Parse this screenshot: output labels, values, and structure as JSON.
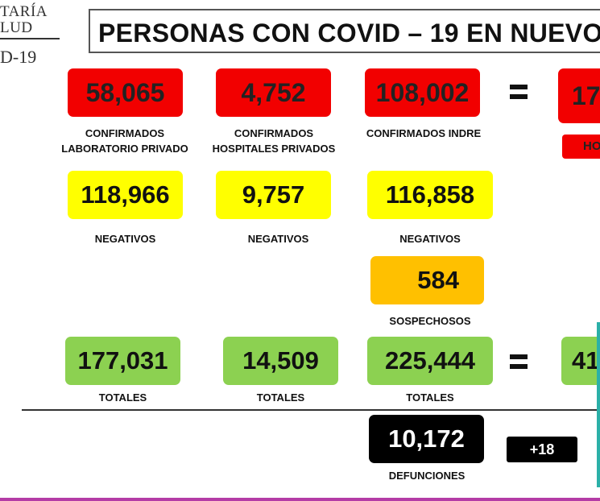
{
  "logo": {
    "line1": "TARÍA",
    "line2": "LUD",
    "line3": "D-19"
  },
  "title": "PERSONAS CON COVID – 19 EN NUEVO",
  "equals": "=",
  "rows": {
    "confirmados": [
      {
        "value": "58,065",
        "label_line1": "CONFIRMADOS",
        "label_line2": "LABORATORIO PRIVADO"
      },
      {
        "value": "4,752",
        "label_line1": "CONFIRMADOS",
        "label_line2": "HOSPITALES PRIVADOS"
      },
      {
        "value": "108,002",
        "label_line1": "CONFIRMADOS INDRE",
        "label_line2": ""
      }
    ],
    "confirmados_total_partial": "17",
    "ho_partial": "HO",
    "negativos": [
      {
        "value": "118,966",
        "label": "NEGATIVOS"
      },
      {
        "value": "9,757",
        "label": "NEGATIVOS"
      },
      {
        "value": "116,858",
        "label": "NEGATIVOS"
      }
    ],
    "sospechosos": {
      "value": "584",
      "label": "SOSPECHOSOS"
    },
    "totales": [
      {
        "value": "177,031",
        "label": "TOTALES"
      },
      {
        "value": "14,509",
        "label": "TOTALES"
      },
      {
        "value": "225,444",
        "label": "TOTALES"
      }
    ],
    "totales_total_partial": "41",
    "defunciones": {
      "value": "10,172",
      "label": "DEFUNCIONES",
      "delta": "+18"
    }
  },
  "colors": {
    "confirmed": "#f20000",
    "negative": "#ffff00",
    "suspected": "#ffc000",
    "total": "#8cd151",
    "deaths": "#000000"
  }
}
